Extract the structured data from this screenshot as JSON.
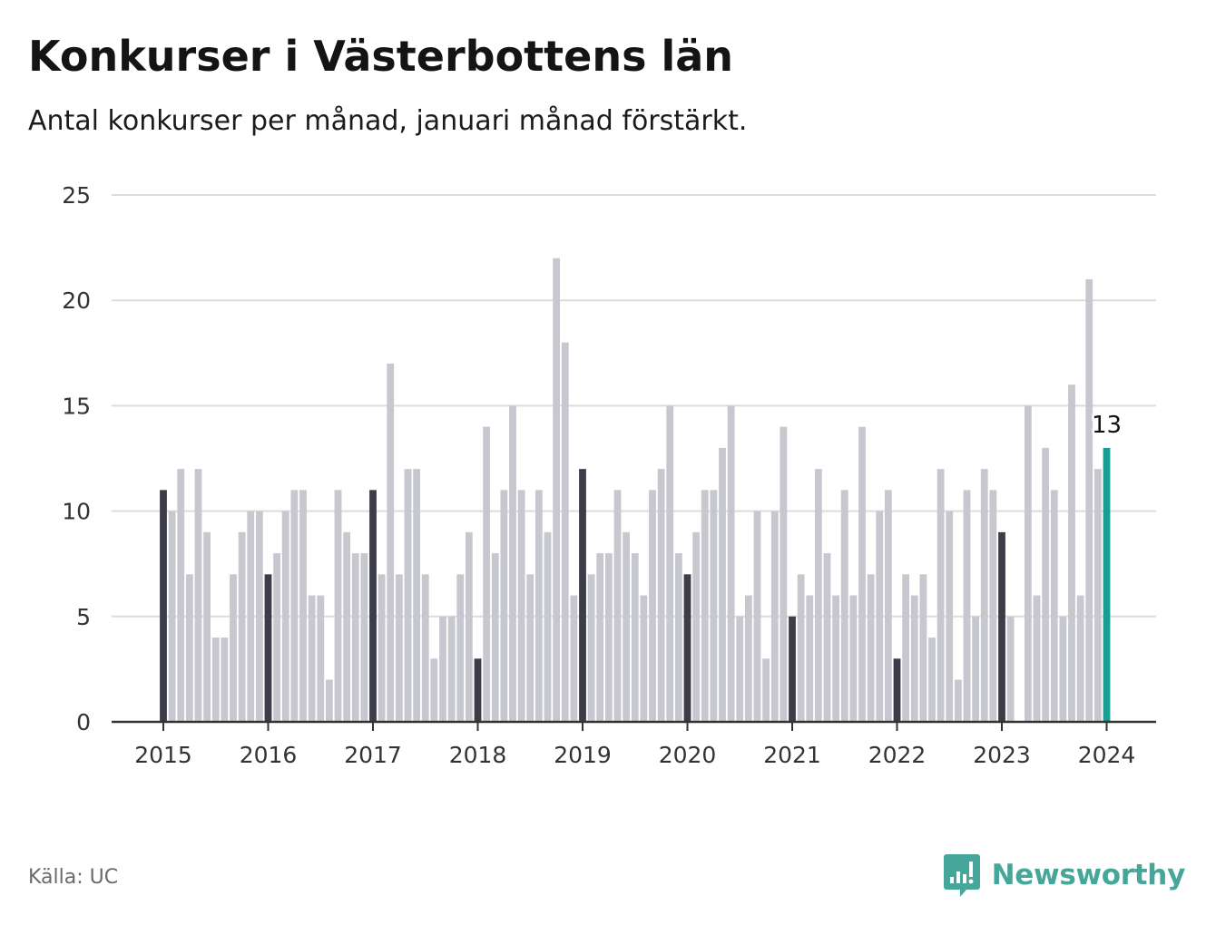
{
  "header": {
    "title": "Konkurser i Västerbottens län",
    "subtitle": "Antal konkurser per månad, januari månad förstärkt."
  },
  "footer": {
    "source": "Källa: UC",
    "brand": "Newsworthy"
  },
  "colors": {
    "january": "#3d3d49",
    "other_month": "#c7c7cf",
    "highlight": "#1a9e92",
    "gridline": "#dcdcdc",
    "axis": "#333333"
  },
  "chart_data": {
    "type": "bar",
    "title": "Konkurser i Västerbottens län",
    "subtitle": "Antal konkurser per månad, januari månad förstärkt.",
    "xlabel": "",
    "ylabel": "",
    "ylim": [
      0,
      25
    ],
    "yticks": [
      0,
      5,
      10,
      15,
      20,
      25
    ],
    "xtick_labels": [
      "2015",
      "2016",
      "2017",
      "2018",
      "2019",
      "2020",
      "2021",
      "2022",
      "2023",
      "2024"
    ],
    "grid": true,
    "start_month": "2015-01",
    "end_month": "2024-01",
    "annotation": {
      "month": "2024-01",
      "label": "13"
    },
    "values": [
      11,
      10,
      12,
      7,
      12,
      9,
      4,
      4,
      7,
      9,
      10,
      10,
      7,
      8,
      10,
      11,
      11,
      6,
      6,
      2,
      11,
      9,
      8,
      8,
      11,
      7,
      17,
      7,
      12,
      12,
      7,
      3,
      5,
      5,
      7,
      9,
      3,
      14,
      8,
      11,
      15,
      11,
      7,
      11,
      9,
      22,
      18,
      6,
      12,
      7,
      8,
      8,
      11,
      9,
      8,
      6,
      11,
      12,
      15,
      8,
      7,
      9,
      11,
      11,
      13,
      15,
      5,
      6,
      10,
      3,
      10,
      14,
      5,
      7,
      6,
      12,
      8,
      6,
      11,
      6,
      14,
      7,
      10,
      11,
      3,
      7,
      6,
      7,
      4,
      12,
      10,
      2,
      11,
      5,
      12,
      11,
      9,
      5,
      0,
      15,
      6,
      13,
      11,
      5,
      16,
      6,
      21,
      12,
      13
    ]
  }
}
